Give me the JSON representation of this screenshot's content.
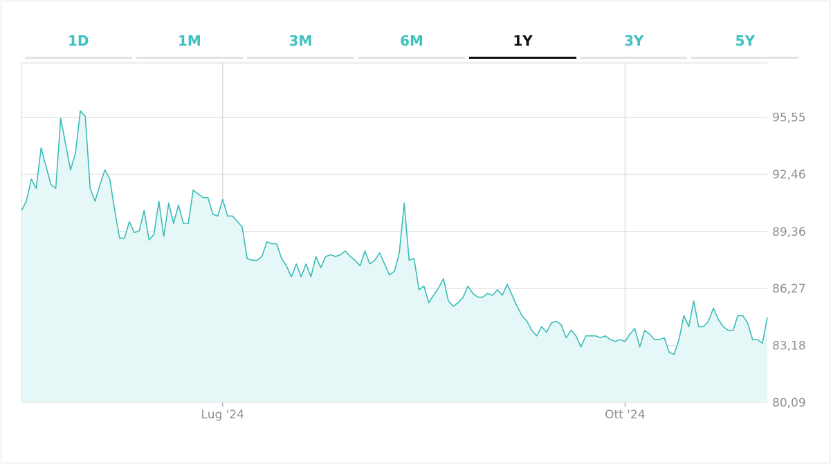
{
  "tabs": [
    {
      "label": "1D",
      "active": false
    },
    {
      "label": "1M",
      "active": false
    },
    {
      "label": "3M",
      "active": false
    },
    {
      "label": "6M",
      "active": false
    },
    {
      "label": "1Y",
      "active": true
    },
    {
      "label": "3Y",
      "active": false
    },
    {
      "label": "5Y",
      "active": false
    }
  ],
  "colors": {
    "accent": "#3fc1bf",
    "line": "#3bbcb8",
    "fill": "#e6f7f7",
    "grid": "#d7dadd",
    "active_tab": "#111111"
  },
  "chart_data": {
    "type": "area",
    "ylim": [
      80.09,
      98.5
    ],
    "y_ticks": [
      "95,55",
      "92,46",
      "89,36",
      "86,27",
      "83,18",
      "80,09"
    ],
    "x_ticks": [
      {
        "label": "Lug '24",
        "index": 41
      },
      {
        "label": "Ott '24",
        "index": 123
      }
    ],
    "values": [
      90.5,
      91.0,
      92.2,
      91.7,
      93.9,
      92.9,
      91.9,
      91.7,
      95.5,
      94.1,
      92.7,
      93.6,
      95.9,
      95.6,
      91.7,
      91.0,
      91.9,
      92.7,
      92.2,
      90.5,
      89.0,
      89.0,
      89.9,
      89.3,
      89.4,
      90.5,
      88.9,
      89.2,
      91.0,
      89.1,
      90.9,
      89.8,
      90.8,
      89.8,
      89.8,
      91.6,
      91.4,
      91.2,
      91.2,
      90.3,
      90.2,
      91.1,
      90.2,
      90.2,
      89.9,
      89.6,
      87.9,
      87.8,
      87.8,
      88.0,
      88.8,
      88.7,
      88.7,
      87.9,
      87.5,
      86.9,
      87.6,
      86.9,
      87.6,
      86.9,
      88.0,
      87.4,
      88.0,
      88.1,
      88.0,
      88.1,
      88.3,
      88.0,
      87.8,
      87.5,
      88.3,
      87.6,
      87.8,
      88.2,
      87.6,
      87.0,
      87.2,
      88.2,
      90.9,
      87.8,
      87.9,
      86.2,
      86.4,
      85.5,
      85.9,
      86.3,
      86.8,
      85.6,
      85.3,
      85.5,
      85.8,
      86.4,
      86.0,
      85.8,
      85.8,
      86.0,
      85.9,
      86.2,
      85.9,
      86.5,
      85.9,
      85.3,
      84.8,
      84.5,
      84.0,
      83.7,
      84.2,
      83.9,
      84.4,
      84.5,
      84.3,
      83.6,
      84.0,
      83.7,
      83.1,
      83.7,
      83.7,
      83.7,
      83.6,
      83.7,
      83.5,
      83.4,
      83.5,
      83.4,
      83.8,
      84.1,
      83.1,
      84.0,
      83.8,
      83.5,
      83.5,
      83.6,
      82.8,
      82.7,
      83.5,
      84.8,
      84.2,
      85.6,
      84.2,
      84.2,
      84.5,
      85.2,
      84.6,
      84.2,
      84.0,
      84.0,
      84.8,
      84.8,
      84.4,
      83.5,
      83.5,
      83.3,
      84.7
    ]
  }
}
